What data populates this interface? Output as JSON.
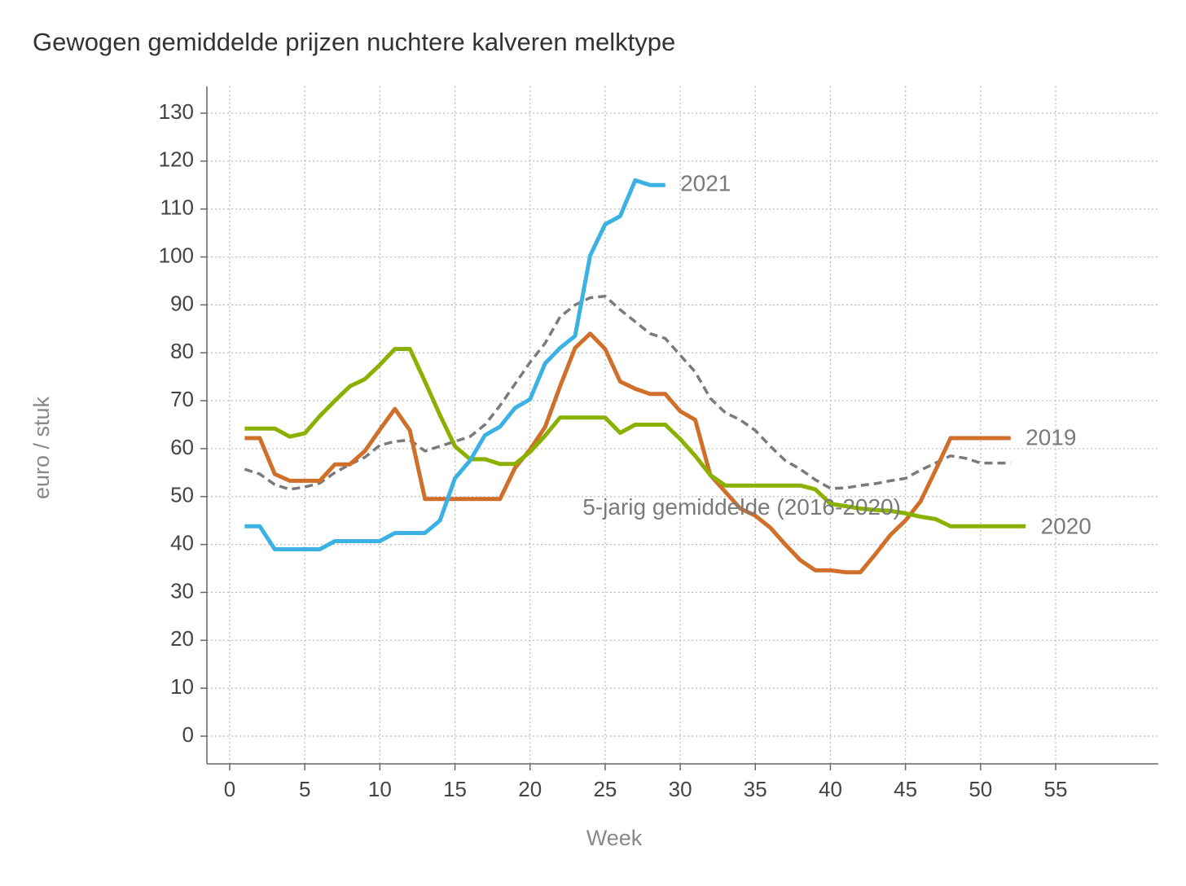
{
  "title": "Gewogen gemiddelde prijzen nuchtere kalveren melktype",
  "chart_data": {
    "type": "line",
    "title": "Gewogen gemiddelde prijzen nuchtere kalveren melktype",
    "xlabel": "Week",
    "ylabel": "euro / stuk",
    "xlim": [
      0,
      55
    ],
    "ylim": [
      0,
      130
    ],
    "xticks": [
      0,
      5,
      10,
      15,
      20,
      25,
      30,
      35,
      40,
      45,
      50,
      55
    ],
    "yticks": [
      0,
      10,
      20,
      30,
      40,
      50,
      60,
      70,
      80,
      90,
      100,
      110,
      120,
      130
    ],
    "grid": true,
    "series": [
      {
        "name": "5-jarig gemiddelde (2016-2020)",
        "color": "#7a7a7a",
        "dashed": true,
        "x": [
          1,
          2,
          3,
          4,
          5,
          6,
          7,
          8,
          9,
          10,
          11,
          12,
          13,
          14,
          15,
          16,
          17,
          18,
          19,
          20,
          21,
          22,
          23,
          24,
          25,
          26,
          27,
          28,
          29,
          30,
          31,
          32,
          33,
          34,
          35,
          36,
          37,
          38,
          39,
          40,
          41,
          42,
          43,
          44,
          45,
          46,
          47,
          48,
          49,
          50,
          51,
          52
        ],
        "values": [
          55.7,
          54.7,
          52.5,
          51.5,
          52,
          52.8,
          55,
          56.7,
          58.2,
          60.7,
          61.5,
          61.8,
          59.5,
          60.5,
          61.5,
          62.5,
          65,
          69,
          73.5,
          78,
          82,
          87.5,
          90,
          91.5,
          91.8,
          89,
          86.5,
          84,
          83,
          79.5,
          76,
          70.5,
          67.5,
          66,
          63.8,
          60.5,
          57.5,
          55.7,
          53.5,
          51.7,
          51.8,
          52.3,
          52.7,
          53.3,
          53.8,
          55.5,
          57,
          58.5,
          58,
          57,
          57,
          57
        ]
      },
      {
        "name": "2019",
        "color": "#d06f2a",
        "dashed": false,
        "x": [
          1,
          2,
          3,
          4,
          5,
          6,
          7,
          8,
          9,
          10,
          11,
          12,
          13,
          14,
          15,
          16,
          17,
          18,
          19,
          20,
          21,
          22,
          23,
          24,
          25,
          26,
          27,
          28,
          29,
          30,
          31,
          32,
          33,
          34,
          35,
          36,
          37,
          38,
          39,
          40,
          41,
          42,
          43,
          44,
          45,
          46,
          47,
          48,
          49,
          50,
          51,
          52
        ],
        "values": [
          62.2,
          62.2,
          54.7,
          53.3,
          53.3,
          53.3,
          56.7,
          56.7,
          59.5,
          64,
          68.3,
          63.8,
          49.5,
          49.5,
          49.5,
          49.5,
          49.5,
          49.5,
          56,
          59.8,
          64.5,
          73,
          81,
          84,
          80.8,
          74,
          72.5,
          71.4,
          71.4,
          67.8,
          66,
          54.5,
          51,
          47.5,
          46,
          43.5,
          40,
          36.7,
          34.6,
          34.6,
          34.2,
          34.2,
          38,
          42,
          45,
          49,
          55.5,
          62.2,
          62.2,
          62.2,
          62.2,
          62.2
        ]
      },
      {
        "name": "2020",
        "color": "#8ab000",
        "dashed": false,
        "x": [
          1,
          2,
          3,
          4,
          5,
          6,
          7,
          8,
          9,
          10,
          11,
          12,
          13,
          14,
          15,
          16,
          17,
          18,
          19,
          20,
          21,
          22,
          23,
          24,
          25,
          26,
          27,
          28,
          29,
          30,
          31,
          32,
          33,
          34,
          35,
          36,
          37,
          38,
          39,
          40,
          41,
          42,
          43,
          44,
          45,
          46,
          47,
          48,
          49,
          50,
          51,
          52,
          53
        ],
        "values": [
          64.2,
          64.2,
          64.2,
          62.5,
          63.2,
          66.8,
          70,
          73,
          74.5,
          77.5,
          80.8,
          80.8,
          74,
          67,
          60.5,
          57.8,
          57.8,
          56.8,
          56.8,
          59.3,
          62.7,
          66.5,
          66.5,
          66.5,
          66.5,
          63.3,
          65,
          65,
          65,
          62,
          58.5,
          54.5,
          52.3,
          52.3,
          52.3,
          52.3,
          52.3,
          52.3,
          51.5,
          48.5,
          48,
          47.5,
          47.2,
          47,
          46.5,
          45.8,
          45.3,
          43.8,
          43.8,
          43.8,
          43.8,
          43.8,
          43.8
        ]
      },
      {
        "name": "2021",
        "color": "#3cb1e3",
        "dashed": false,
        "x": [
          1,
          2,
          3,
          4,
          5,
          6,
          7,
          8,
          9,
          10,
          11,
          12,
          13,
          14,
          15,
          16,
          17,
          18,
          19,
          20,
          21,
          22,
          23,
          24,
          25,
          26,
          27,
          28,
          29
        ],
        "values": [
          43.8,
          43.8,
          39,
          39,
          39,
          39,
          40.7,
          40.7,
          40.7,
          40.7,
          42.4,
          42.4,
          42.4,
          45,
          53.8,
          57.5,
          62.8,
          64.6,
          68.5,
          70.3,
          77.8,
          81,
          83.5,
          100.3,
          106.8,
          108.5,
          116,
          115,
          115
        ]
      }
    ],
    "annotations": [
      {
        "text": "2021",
        "x": 30,
        "y": 115
      },
      {
        "text": "2019",
        "x": 53,
        "y": 62
      },
      {
        "text": "2020",
        "x": 54,
        "y": 43.5
      },
      {
        "text": "5-jarig gemiddelde (2016-2020)",
        "x": 23.5,
        "y": 47.5
      }
    ]
  }
}
